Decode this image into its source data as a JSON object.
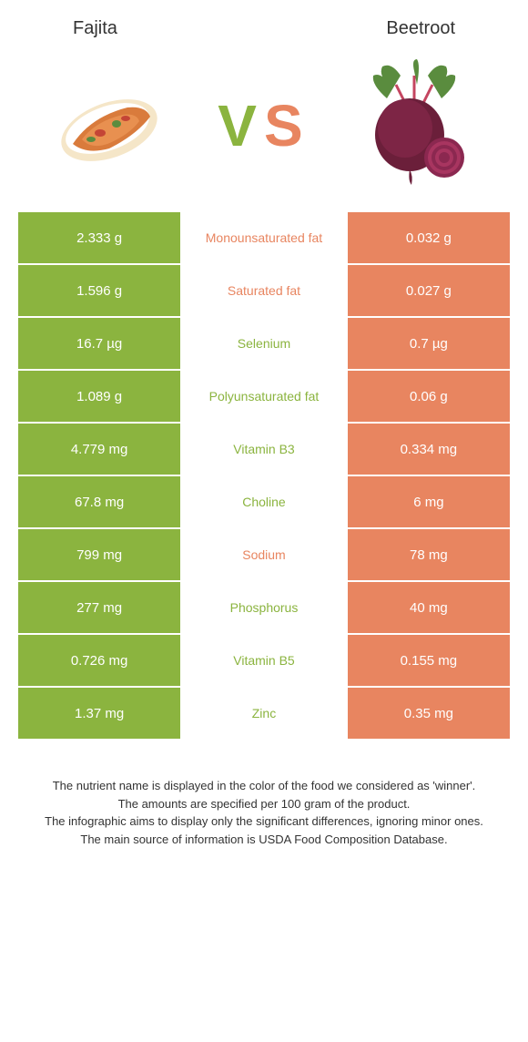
{
  "header": {
    "left_title": "Fajita",
    "right_title": "Beetroot"
  },
  "vs": {
    "v": "V",
    "s": "S"
  },
  "colors": {
    "left_bg": "#8bb43f",
    "right_bg": "#e88560",
    "winner_left": "#e88560",
    "winner_right": "#8bb43f"
  },
  "rows": [
    {
      "left": "2.333 g",
      "label": "Monounsaturated fat",
      "right": "0.032 g",
      "winner": "left"
    },
    {
      "left": "1.596 g",
      "label": "Saturated fat",
      "right": "0.027 g",
      "winner": "left"
    },
    {
      "left": "16.7 µg",
      "label": "Selenium",
      "right": "0.7 µg",
      "winner": "right"
    },
    {
      "left": "1.089 g",
      "label": "Polyunsaturated fat",
      "right": "0.06 g",
      "winner": "right"
    },
    {
      "left": "4.779 mg",
      "label": "Vitamin B3",
      "right": "0.334 mg",
      "winner": "right"
    },
    {
      "left": "67.8 mg",
      "label": "Choline",
      "right": "6 mg",
      "winner": "right"
    },
    {
      "left": "799 mg",
      "label": "Sodium",
      "right": "78 mg",
      "winner": "left"
    },
    {
      "left": "277 mg",
      "label": "Phosphorus",
      "right": "40 mg",
      "winner": "right"
    },
    {
      "left": "0.726 mg",
      "label": "Vitamin B5",
      "right": "0.155 mg",
      "winner": "right"
    },
    {
      "left": "1.37 mg",
      "label": "Zinc",
      "right": "0.35 mg",
      "winner": "right"
    }
  ],
  "footer": {
    "line1": "The nutrient name is displayed in the color of the food we considered as 'winner'.",
    "line2": "The amounts are specified per 100 gram of the product.",
    "line3": "The infographic aims to display only the significant differences, ignoring minor ones.",
    "line4": "The main source of information is USDA Food Composition Database."
  }
}
